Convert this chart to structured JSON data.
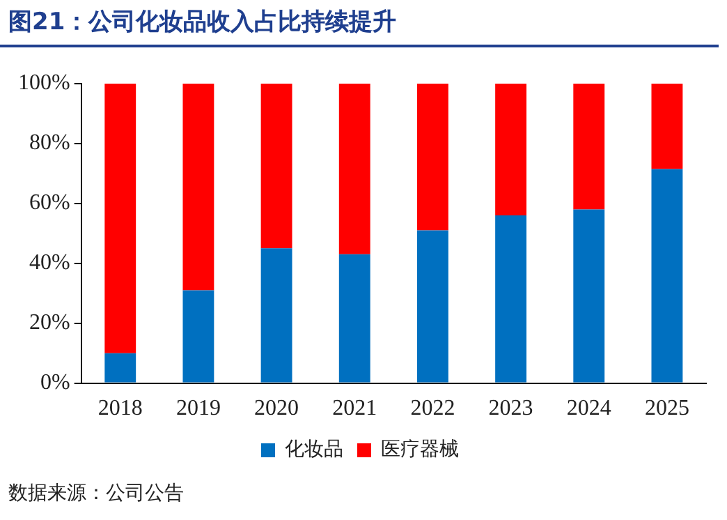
{
  "chart_data": {
    "type": "bar",
    "title": "图21：公司化妆品收入占比持续提升",
    "stacked": true,
    "categories": [
      "2018",
      "2019",
      "2020",
      "2021",
      "2022",
      "2023",
      "2024",
      "2025"
    ],
    "series": [
      {
        "name": "化妆品",
        "color": "#0070c0",
        "values": [
          10,
          31,
          45,
          43,
          51,
          56,
          58,
          71.5
        ]
      },
      {
        "name": "医疗器械",
        "color": "#ff0000",
        "values": [
          90,
          69,
          55,
          57,
          49,
          44,
          42,
          28.5
        ]
      }
    ],
    "ylim": [
      0,
      100
    ],
    "yticks": [
      {
        "value": 0,
        "label": "0%"
      },
      {
        "value": 20,
        "label": "20%"
      },
      {
        "value": 40,
        "label": "40%"
      },
      {
        "value": 60,
        "label": "60%"
      },
      {
        "value": 80,
        "label": "80%"
      },
      {
        "value": 100,
        "label": "100%"
      }
    ],
    "grid": false,
    "legend": "bottom",
    "annotations": [
      "数据来源：公司公告"
    ]
  }
}
